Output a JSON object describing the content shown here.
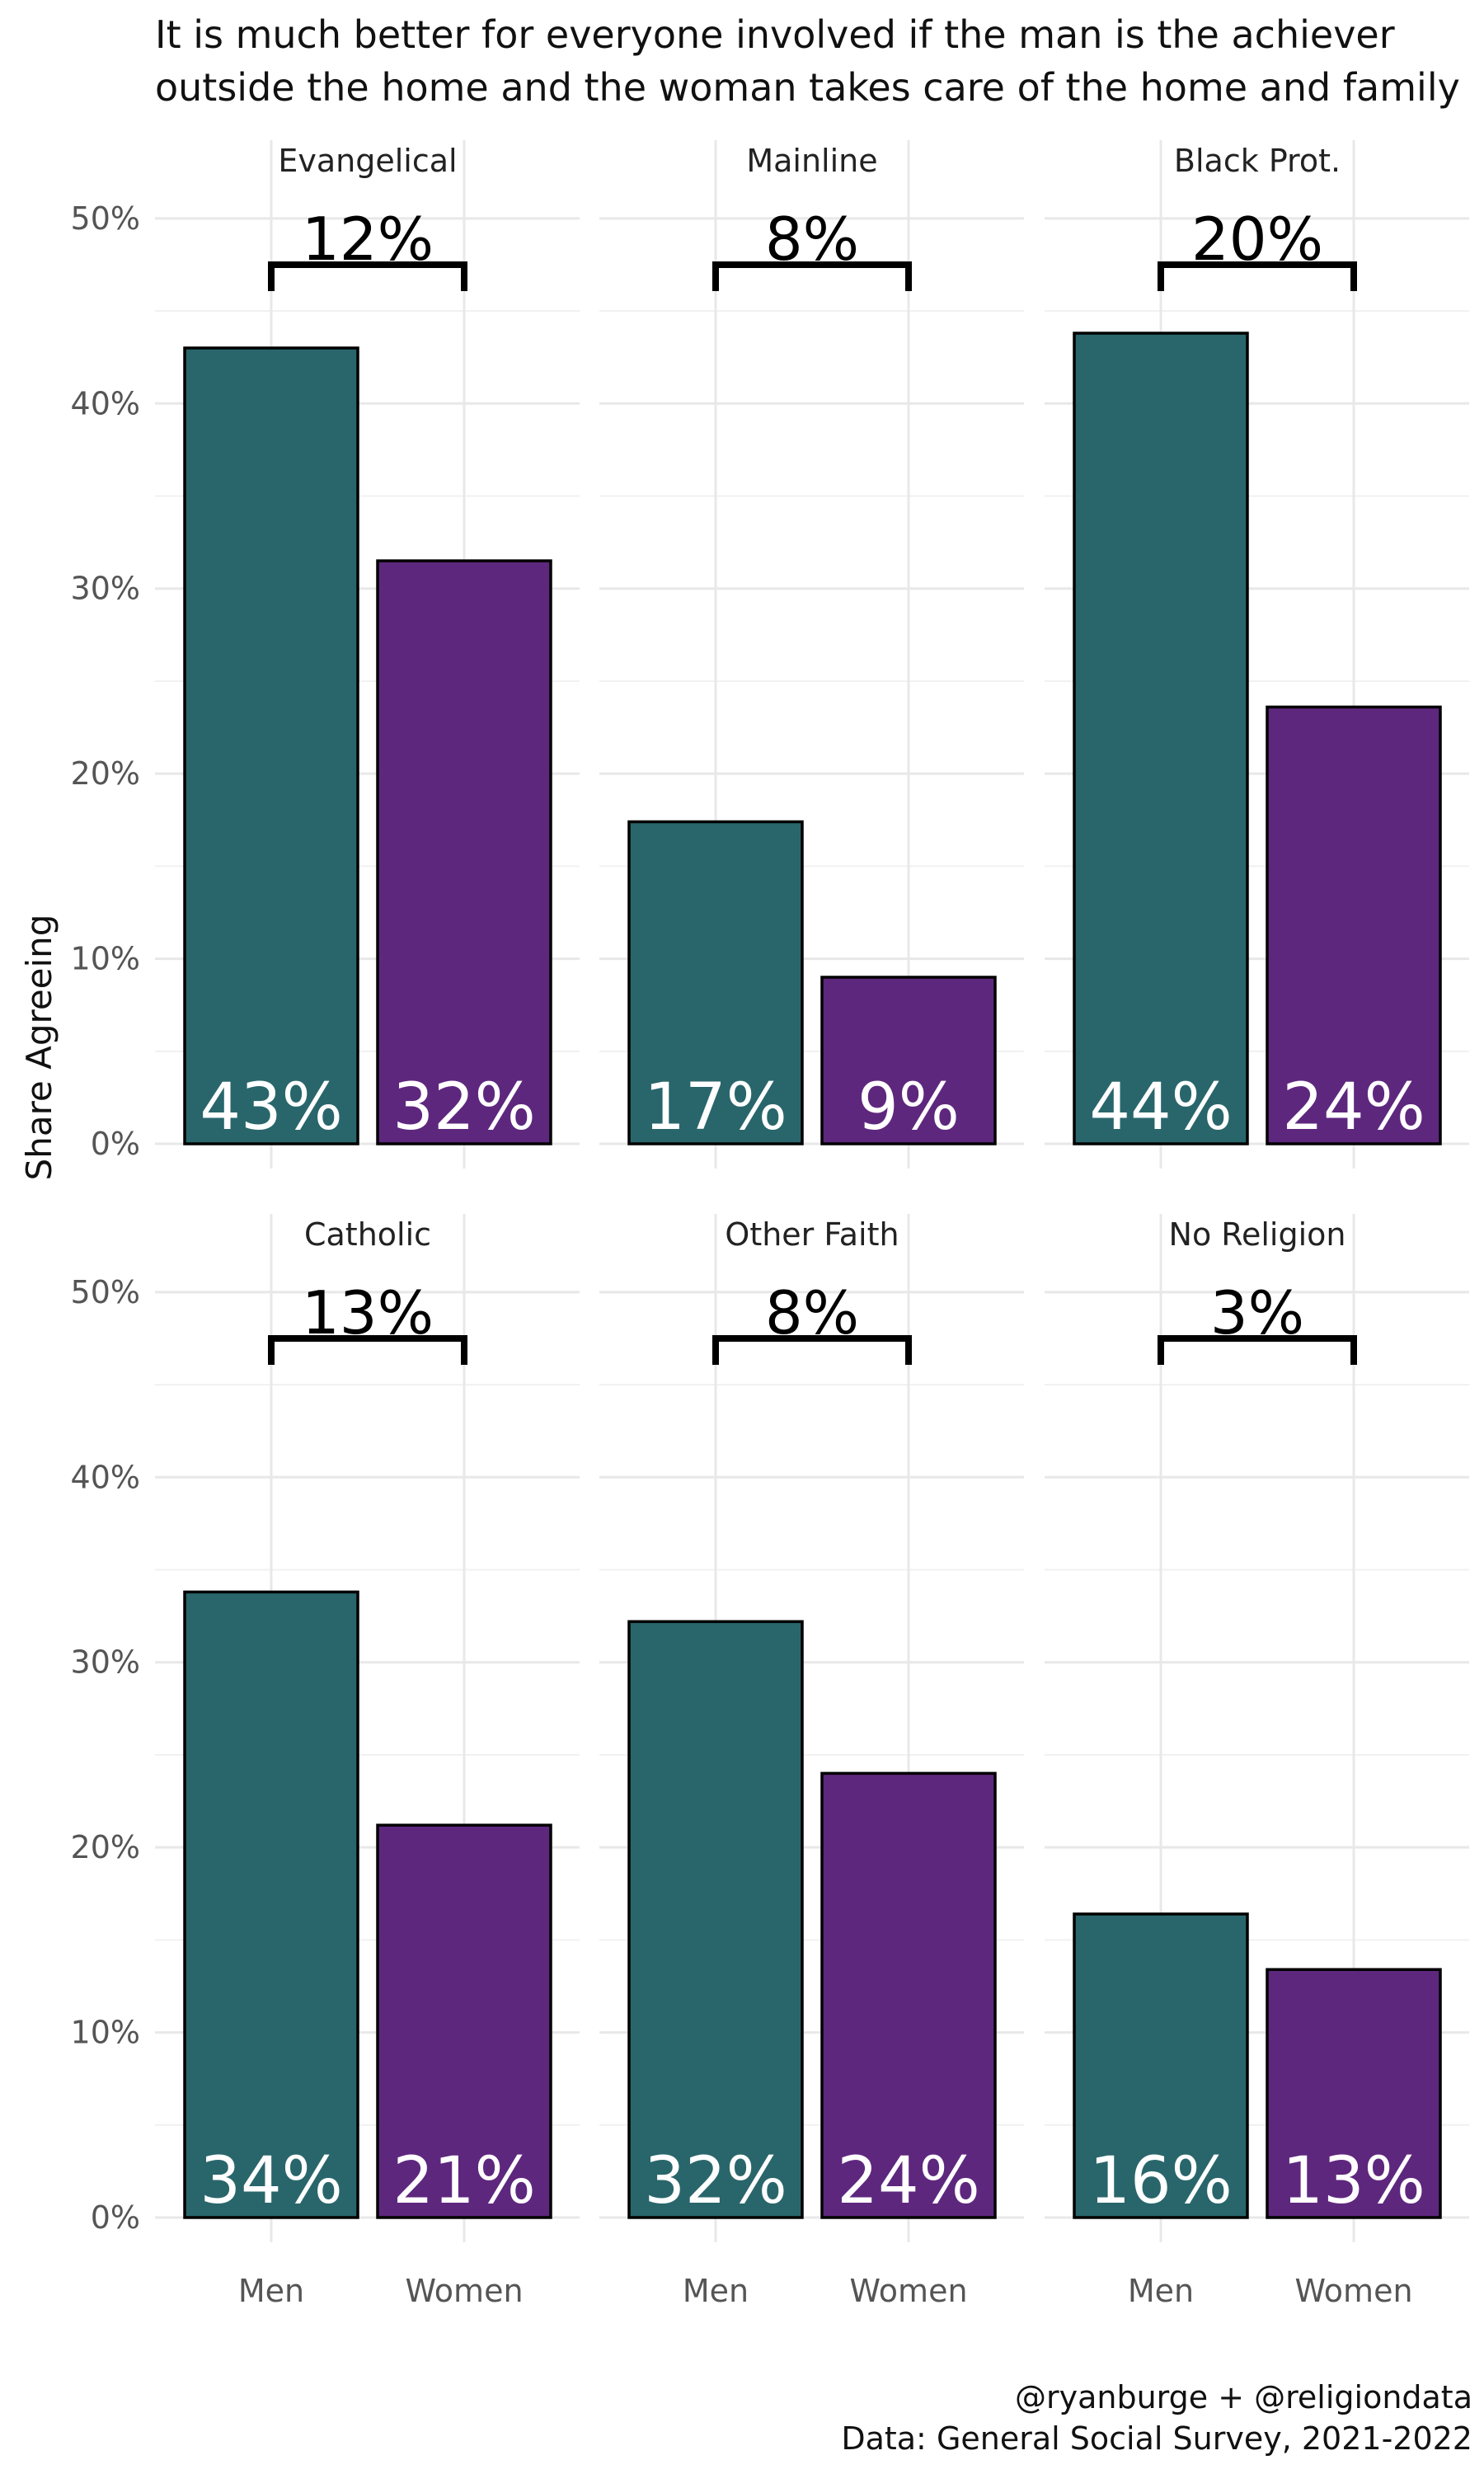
{
  "chart_data": {
    "type": "bar",
    "title_lines": [
      "It is much better for everyone involved if the man is the achiever",
      "outside the home and the woman takes care of the home and family"
    ],
    "ylabel": "Share Agreeing",
    "ylim": [
      0,
      0.52
    ],
    "yticks": [
      0,
      0.1,
      0.2,
      0.3,
      0.4,
      0.5
    ],
    "ytick_labels": [
      "0%",
      "10%",
      "20%",
      "30%",
      "40%",
      "50%"
    ],
    "categories": [
      "Men",
      "Women"
    ],
    "colors": {
      "Men": "#29666b",
      "Women": "#5e277e"
    },
    "bracket_value": 0.475,
    "panels": [
      {
        "name": "Evangelical",
        "values": [
          0.43,
          0.315
        ],
        "labels": [
          "43%",
          "32%"
        ],
        "gap_label": "12%"
      },
      {
        "name": "Mainline",
        "values": [
          0.174,
          0.09
        ],
        "labels": [
          "17%",
          "9%"
        ],
        "gap_label": "8%"
      },
      {
        "name": "Black Prot.",
        "values": [
          0.438,
          0.236
        ],
        "labels": [
          "44%",
          "24%"
        ],
        "gap_label": "20%"
      },
      {
        "name": "Catholic",
        "values": [
          0.338,
          0.212
        ],
        "labels": [
          "34%",
          "21%"
        ],
        "gap_label": "13%"
      },
      {
        "name": "Other Faith",
        "values": [
          0.322,
          0.24
        ],
        "labels": [
          "32%",
          "24%"
        ],
        "gap_label": "8%"
      },
      {
        "name": "No Religion",
        "values": [
          0.164,
          0.134
        ],
        "labels": [
          "16%",
          "13%"
        ],
        "gap_label": "3%"
      }
    ],
    "caption_lines": [
      "@ryanburge + @religiondata",
      "Data: General Social Survey, 2021-2022"
    ]
  }
}
